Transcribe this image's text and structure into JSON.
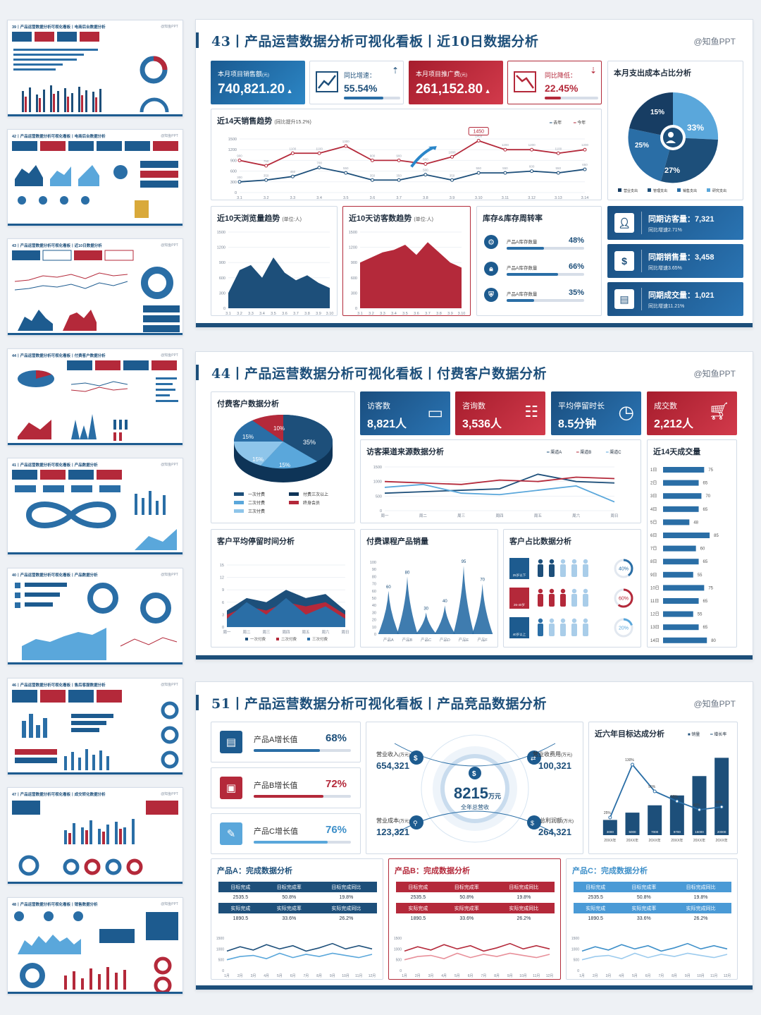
{
  "thumbnails": [
    {
      "title": "39丨产品运营数据分析可视化看板丨电商后台数据分析",
      "brand": "@知鱼PPT"
    },
    {
      "title": "42丨产品运营数据分析可视化看板丨电商后台数据分析",
      "brand": "@知鱼PPT"
    },
    {
      "title": "43丨产品运营数据分析可视化看板丨近10日数据分析",
      "brand": "@知鱼PPT"
    },
    {
      "title": "44丨产品运营数据分析可视化看板丨付费客户数据分析",
      "brand": "@知鱼PPT"
    },
    {
      "title": "41丨产品运营数据分析可视化看板丨产品数据分析",
      "brand": "@知鱼PPT"
    },
    {
      "title": "40丨产品运营数据分析可视化看板丨产品数据分析",
      "brand": "@知鱼PPT"
    },
    {
      "title": "46丨产品运营数据分析可视化看板丨售后客服数据分析",
      "brand": "@知鱼PPT"
    },
    {
      "title": "47丨产品运营数据分析可视化看板丨成交转化数据分析",
      "brand": "@知鱼PPT"
    },
    {
      "title": "48丨产品运营数据分析可视化看板丨销售数据分析",
      "brand": "@知鱼PPT"
    }
  ],
  "slide43": {
    "title": "43丨产品运营数据分析可视化看板丨近10日数据分析",
    "brand": "@知鱼PPT",
    "kpi1": {
      "label": "本月项目销售额",
      "unit": "(元)",
      "value": "740,821.20"
    },
    "kpi2": {
      "label": "同比增速：",
      "value": "55.54%"
    },
    "kpi3": {
      "label": "本月项目推广费",
      "unit": "(元)",
      "value": "261,152.80"
    },
    "kpi4": {
      "label": "同比降低：",
      "value": "22.45%"
    },
    "pie": {
      "title": "本月支出成本占比分析",
      "slices": [
        "15%",
        "33%",
        "25%",
        "27%"
      ],
      "legend": [
        "营业支出",
        "管理支出",
        "销售支出",
        "研究支出"
      ]
    },
    "trend": {
      "title": "近14天销售趋势",
      "subtitle": "(同比提升15.2%)",
      "legend": [
        "去年",
        "今年"
      ],
      "peak": "1450",
      "yticks": [
        "1500",
        "1200",
        "900",
        "600",
        "300",
        "0"
      ],
      "x": [
        "3.1",
        "3.2",
        "3.3",
        "3.4",
        "3.5",
        "3.6",
        "3.7",
        "3.8",
        "3.9",
        "3.10",
        "3.11",
        "3.12",
        "3.13",
        "3.14"
      ],
      "series_lastyear": [
        300,
        350,
        450,
        700,
        550,
        350,
        350,
        500,
        350,
        550,
        550,
        600,
        550,
        650
      ],
      "series_thisyear": [
        900,
        750,
        1100,
        1100,
        1300,
        900,
        900,
        800,
        1000,
        1450,
        1200,
        1200,
        1100,
        1200
      ]
    },
    "browse": {
      "title": "近10天浏览量趋势",
      "unit": "(单位:人)",
      "yticks": [
        "1500",
        "1200",
        "900",
        "600",
        "300",
        "0"
      ],
      "x": [
        "3.1",
        "3.2",
        "3.3",
        "3.4",
        "3.5",
        "3.6",
        "3.7",
        "3.8",
        "3.9",
        "3.10"
      ],
      "values": [
        300,
        750,
        850,
        600,
        1000,
        700,
        550,
        650,
        500,
        400
      ]
    },
    "visit": {
      "title": "近10天访客数趋势",
      "unit": "(单位:人)",
      "yticks": [
        "1500",
        "1200",
        "900",
        "600",
        "300",
        "0"
      ],
      "x": [
        "3.1",
        "3.2",
        "3.3",
        "3.4",
        "3.5",
        "3.6",
        "3.7",
        "3.8",
        "3.9",
        "3.10"
      ],
      "values": [
        900,
        1000,
        1100,
        1150,
        1250,
        1050,
        1300,
        1100,
        900,
        800
      ]
    },
    "inventory": {
      "title": "库存&库存周转率",
      "items": [
        {
          "label": "产品A库存数量",
          "pct": "48%",
          "fill": 0.48
        },
        {
          "label": "产品A库存数量",
          "pct": "66%",
          "fill": 0.66
        },
        {
          "label": "产品A库存数量",
          "pct": "35%",
          "fill": 0.35
        }
      ]
    },
    "stats": [
      {
        "label": "同期访客量：",
        "value": "7,321",
        "sub": "同比增速2.71%"
      },
      {
        "label": "同期销售量：",
        "value": "3,458",
        "sub": "同比增速3.65%"
      },
      {
        "label": "同期成交量：",
        "value": "1,021",
        "sub": "同比增速11.21%"
      }
    ]
  },
  "slide44": {
    "title": "44丨产品运营数据分析可视化看板丨付费客户数据分析",
    "brand": "@知鱼PPT",
    "pie": {
      "title": "付费客户数据分析",
      "slices": [
        "35%",
        "15%",
        "15%",
        "10%",
        "15%"
      ],
      "legend": [
        "一次付费",
        "付费三次以上",
        "二次付费",
        "终身会员",
        "三次付费"
      ]
    },
    "kpis": [
      {
        "label": "访客数",
        "value": "8,821人"
      },
      {
        "label": "咨询数",
        "value": "3,536人"
      },
      {
        "label": "平均停留时长",
        "value": "8.5分钟"
      },
      {
        "label": "成交数",
        "value": "2,212人"
      }
    ],
    "channel": {
      "title": "访客渠道来源数据分析",
      "legend": [
        "渠道A",
        "渠道B",
        "渠道C"
      ],
      "yticks": [
        "1500",
        "1000",
        "500",
        "0"
      ],
      "x": [
        "周一",
        "周二",
        "周三",
        "周四",
        "周五",
        "周六",
        "周日"
      ],
      "A": [
        600,
        650,
        700,
        750,
        1250,
        1000,
        950
      ],
      "B": [
        1000,
        950,
        900,
        1050,
        1000,
        1150,
        1100
      ],
      "C": [
        800,
        900,
        600,
        550,
        700,
        850,
        300
      ]
    },
    "stay": {
      "title": "客户平均停留时间分析",
      "yticks": [
        "15",
        "12",
        "9",
        "6",
        "3",
        "0"
      ],
      "x": [
        "周一",
        "周二",
        "周三",
        "周四",
        "周五",
        "周六",
        "周日"
      ],
      "legend": [
        "一次付费",
        "二次付费",
        "三次付费"
      ]
    },
    "course": {
      "title": "付费课程产品销量",
      "yticks": [
        "100",
        "90",
        "80",
        "70",
        "60",
        "50",
        "40",
        "30",
        "20",
        "10",
        "0"
      ],
      "x": [
        "产品A",
        "产品B",
        "产品C",
        "产品D",
        "产品E",
        "产品F"
      ],
      "values": [
        60,
        80,
        30,
        40,
        95,
        70
      ]
    },
    "ratio": {
      "title": "客户占比数据分析",
      "groups": [
        {
          "label": "25岁以下",
          "pct": "40%"
        },
        {
          "label": "26-40岁",
          "pct": "60%"
        },
        {
          "label": "40岁以上",
          "pct": "20%"
        }
      ]
    },
    "deals": {
      "title": "近14天成交量",
      "labels": [
        "1日",
        "2日",
        "3日",
        "4日",
        "5日",
        "6日",
        "7日",
        "8日",
        "9日",
        "10日",
        "11日",
        "12日",
        "13日",
        "14日"
      ],
      "values": [
        75,
        65,
        70,
        65,
        48,
        85,
        60,
        65,
        55,
        75,
        65,
        55,
        65,
        80
      ]
    }
  },
  "slide51": {
    "title": "51丨产品运营数据分析可视化看板丨产品竞品数据分析",
    "brand": "@知鱼PPT",
    "growth": [
      {
        "label": "产品A增长值",
        "pct": "68%",
        "fill": 0.68
      },
      {
        "label": "产品B增长值",
        "pct": "72%",
        "fill": 0.72
      },
      {
        "label": "产品C增长值",
        "pct": "76%",
        "fill": 0.76
      }
    ],
    "center": {
      "value": "8215",
      "unit": "万元",
      "label": "全年总营收",
      "tl": {
        "label": "营业收入",
        "unit": "(万元)",
        "value": "654,321"
      },
      "tr": {
        "label": "营业收费用",
        "unit": "(万元)",
        "value": "100,321"
      },
      "bl": {
        "label": "营业成本",
        "unit": "(万元)",
        "value": "123,321"
      },
      "br": {
        "label": "总利润额",
        "unit": "(万元)",
        "value": "264,321"
      }
    },
    "target": {
      "title": "近六年目标达成分析",
      "legend": [
        "销量",
        "增长率"
      ],
      "x": [
        "20XX年",
        "20XX年",
        "20XX年",
        "20XX年",
        "20XX年",
        "20XX年"
      ],
      "bars": [
        3000,
        5000,
        7000,
        9700,
        15000,
        20000
      ],
      "rates": [
        "25%",
        "130%",
        "90%",
        "68%",
        "40%",
        "48%"
      ]
    },
    "products": [
      {
        "title": "产品A：完成数据分析",
        "h1": [
          "目标完成",
          "目标完成率",
          "目标完成同比"
        ],
        "r1": [
          "2535.5",
          "50.8%",
          "19.8%"
        ],
        "h2": [
          "实际完成",
          "实际完成率",
          "实际完成同比"
        ],
        "r2": [
          "1890.5",
          "33.6%",
          "26.2%"
        ]
      },
      {
        "title": "产品B：完成数据分析",
        "h1": [
          "目标完成",
          "目标完成率",
          "目标完成同比"
        ],
        "r1": [
          "2535.5",
          "50.8%",
          "19.8%"
        ],
        "h2": [
          "实际完成",
          "实际完成率",
          "实际完成同比"
        ],
        "r2": [
          "1890.5",
          "33.6%",
          "26.2%"
        ]
      },
      {
        "title": "产品C：完成数据分析",
        "h1": [
          "目标完成",
          "目标完成率",
          "目标完成同比"
        ],
        "r1": [
          "2535.5",
          "50.8%",
          "19.8%"
        ],
        "h2": [
          "实际完成",
          "实际完成率",
          "实际完成同比"
        ],
        "r2": [
          "1890.5",
          "33.6%",
          "26.2%"
        ]
      }
    ],
    "months": [
      "1月",
      "2月",
      "3月",
      "4月",
      "5月",
      "6月",
      "7月",
      "8月",
      "9月",
      "10月",
      "11月",
      "12月"
    ],
    "yticks": [
      "1500",
      "1000",
      "500",
      "0"
    ]
  },
  "colors": {
    "navy": "#1d4f7a",
    "blue": "#2a6ea6",
    "red": "#b4293a",
    "light": "#5aa7db"
  }
}
